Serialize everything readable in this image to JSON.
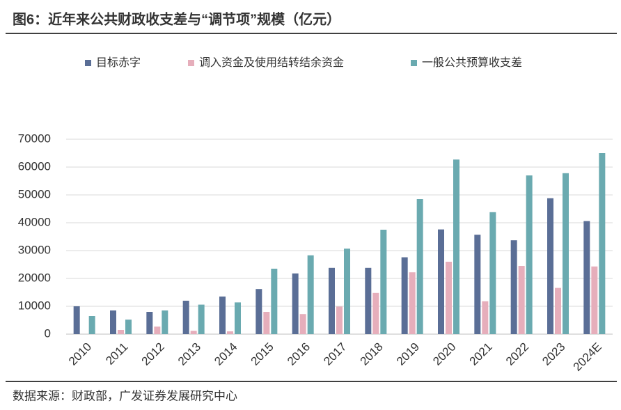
{
  "chart_data": {
    "type": "bar",
    "title": "图6：近年来公共财政收支差与“调节项”规模（亿元）",
    "source": "数据来源：财政部，广发证券发展研究中心",
    "categories": [
      "2010",
      "2011",
      "2012",
      "2013",
      "2014",
      "2015",
      "2016",
      "2017",
      "2018",
      "2019",
      "2020",
      "2021",
      "2022",
      "2023",
      "2024E"
    ],
    "series": [
      {
        "name": "目标赤字",
        "color": "#5a6e96",
        "values": [
          10000,
          8500,
          8000,
          12000,
          13500,
          16200,
          21800,
          23800,
          23800,
          27600,
          37600,
          35700,
          33700,
          48800,
          40600
        ]
      },
      {
        "name": "调入资金及使用结转结余资金",
        "color": "#e6aebb",
        "values": [
          0,
          1500,
          2700,
          1200,
          1000,
          8000,
          7200,
          9900,
          14800,
          22200,
          26000,
          11800,
          24500,
          16600,
          24300
        ]
      },
      {
        "name": "一般公共预算收支差",
        "color": "#6aaab0",
        "values": [
          6500,
          5200,
          8500,
          10600,
          11400,
          23500,
          28300,
          30700,
          37500,
          48500,
          62700,
          43800,
          57000,
          57800,
          65000
        ]
      }
    ],
    "ylim": [
      0,
      70000
    ],
    "yticks": [
      0,
      10000,
      20000,
      30000,
      40000,
      50000,
      60000,
      70000
    ],
    "grid": true,
    "legend": "top"
  }
}
